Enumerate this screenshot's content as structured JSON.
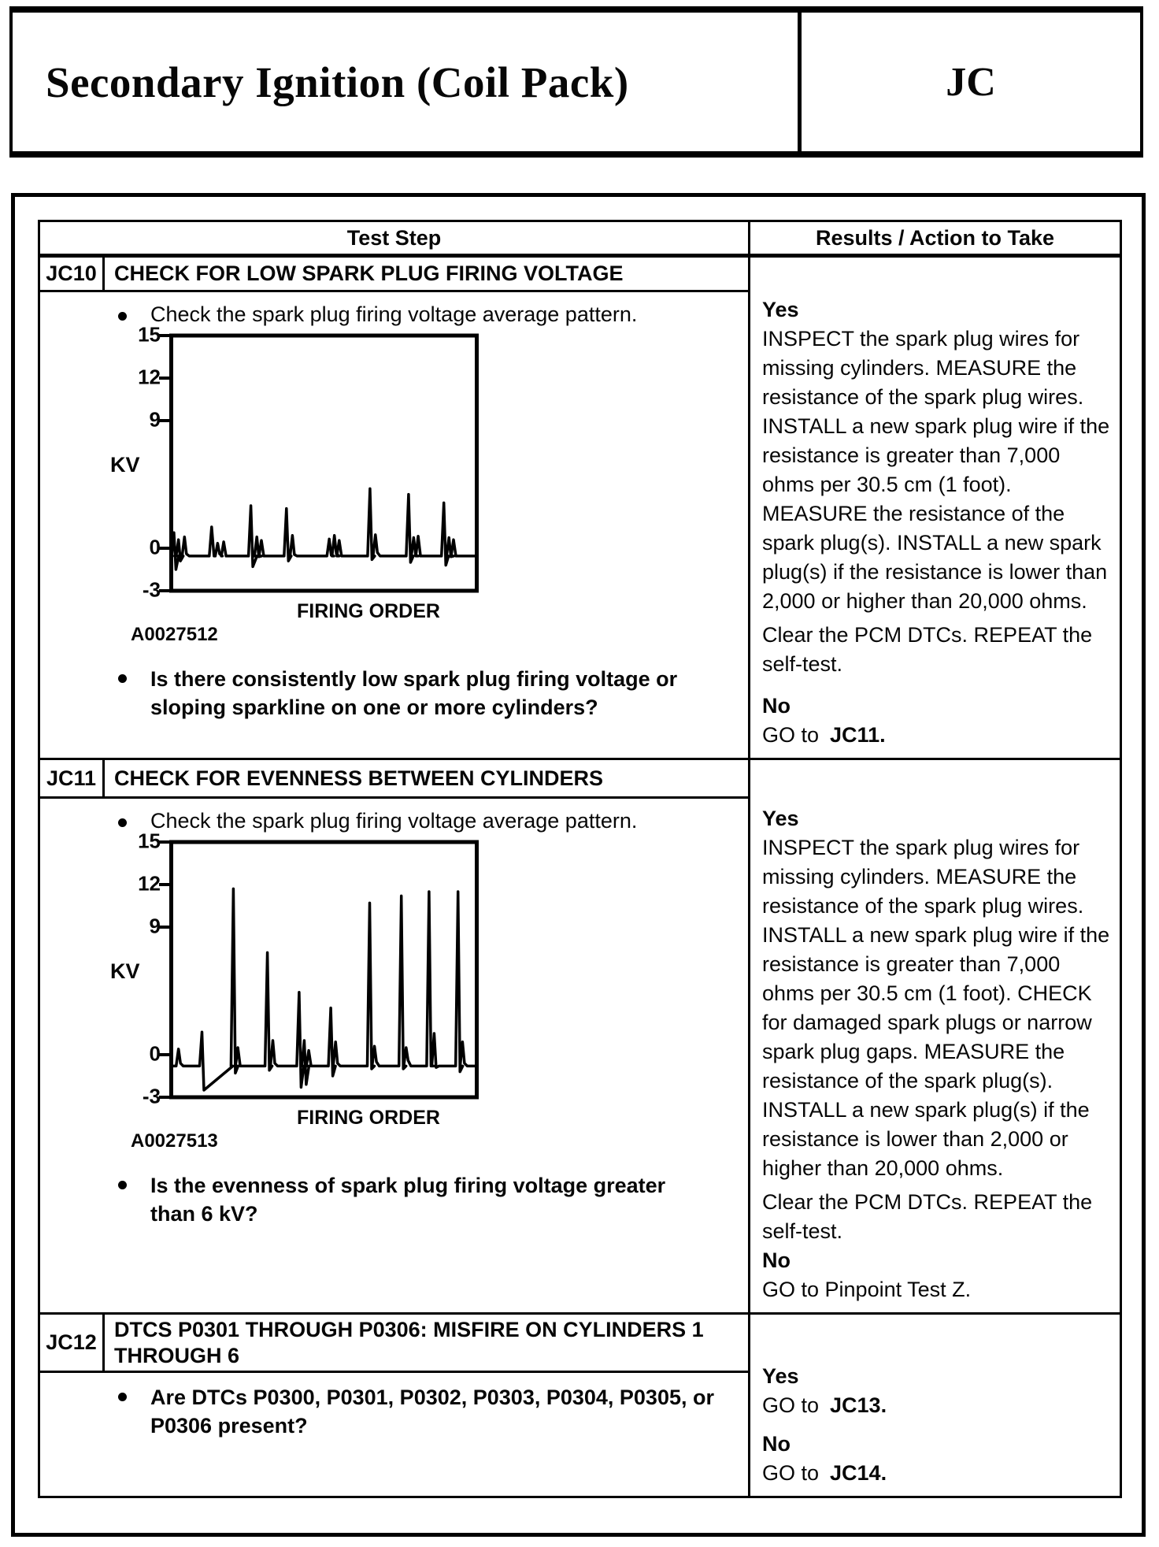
{
  "header": {
    "title": "Secondary Ignition (Coil Pack)",
    "code": "JC"
  },
  "table": {
    "col_headers": {
      "test_step": "Test Step",
      "results": "Results / Action to Take"
    },
    "steps": [
      {
        "id": "JC10",
        "title": "CHECK FOR LOW SPARK PLUG FIRING VOLTAGE",
        "instruction": "Check the spark plug firing voltage average pattern.",
        "question": "Is there consistently low spark plug firing voltage or sloping sparkline on one or more cylinders?",
        "yes_label": "Yes",
        "yes_paragraphs": [
          "INSPECT the spark plug wires for missing cylinders. MEASURE the resistance of the spark plug wires. INSTALL a new spark plug wire if the resistance is greater than 7,000 ohms per 30.5 cm (1 foot). MEASURE the resistance of the spark plug(s). INSTALL a new spark plug(s) if the resistance is lower than 2,000 or higher than 20,000 ohms.",
          "Clear the PCM DTCs. REPEAT the self-test."
        ],
        "no_label": "No",
        "no_action": {
          "prefix": "GO to",
          "target": "JC11."
        }
      },
      {
        "id": "JC11",
        "title": "CHECK FOR EVENNESS BETWEEN CYLINDERS",
        "instruction": "Check the spark plug firing voltage average pattern.",
        "question": "Is the evenness of spark plug firing voltage greater than 6 kV?",
        "yes_label": "Yes",
        "yes_paragraphs": [
          "INSPECT the spark plug wires for missing cylinders. MEASURE the resistance of the spark plug wires. INSTALL a new spark plug wire if the resistance is greater than 7,000 ohms per 30.5 cm (1 foot). CHECK for damaged spark plugs or narrow spark plug gaps. MEASURE the resistance of the spark plug(s). INSTALL a new spark plug(s) if the resistance is lower than 2,000 or higher than 20,000 ohms.",
          "Clear the PCM DTCs. REPEAT the self-test."
        ],
        "no_label": "No",
        "no_action": {
          "prefix": "GO to Pinpoint Test Z.",
          "target": ""
        }
      },
      {
        "id": "JC12",
        "title": "DTCS P0301 THROUGH P0306: MISFIRE ON CYLINDERS 1 THROUGH 6",
        "question": "Are DTCs P0300, P0301, P0302, P0303, P0304, P0305, or P0306 present?",
        "yes_label": "Yes",
        "yes_action": {
          "prefix": "GO to",
          "target": "JC13."
        },
        "no_label": "No",
        "no_action": {
          "prefix": "GO to",
          "target": "JC14."
        }
      }
    ]
  },
  "chart_data": [
    {
      "type": "line",
      "title": "Spark plug firing voltage average pattern (consistently low firing voltage)",
      "figure_id": "A0027512",
      "ylabel": "KV",
      "xlabel": "FIRING ORDER",
      "yticks": [
        15,
        12,
        9,
        0,
        -3
      ],
      "ylim": [
        -3,
        15
      ],
      "grid": false,
      "baseline_kv": -0.55,
      "spikes": [
        {
          "x": 0.005,
          "up": 1.1,
          "down": -1.5
        },
        {
          "x": 0.02,
          "up": 0.6,
          "down": -0.9
        },
        {
          "x": 0.04,
          "up": 0.8,
          "down": -0.4
        },
        {
          "x": 0.13,
          "up": 1.5
        },
        {
          "x": 0.15,
          "up": 0.35,
          "down": -0.4
        },
        {
          "x": 0.17,
          "up": 0.45
        },
        {
          "x": 0.26,
          "up": 3.0,
          "down": -1.3,
          "recover": 0.02
        },
        {
          "x": 0.28,
          "up": 0.8,
          "down": -0.6
        },
        {
          "x": 0.295,
          "up": 0.55
        },
        {
          "x": 0.378,
          "up": 2.8,
          "down": -0.9
        },
        {
          "x": 0.398,
          "up": 0.9,
          "down": -0.45
        },
        {
          "x": 0.52,
          "up": 0.65,
          "down": -0.5
        },
        {
          "x": 0.537,
          "up": 0.9,
          "down": -0.4
        },
        {
          "x": 0.553,
          "up": 0.55
        },
        {
          "x": 0.655,
          "up": 4.2,
          "down": -0.8
        },
        {
          "x": 0.673,
          "up": 0.95,
          "down": -0.3
        },
        {
          "x": 0.783,
          "up": 3.8,
          "down": -1.0
        },
        {
          "x": 0.8,
          "up": 0.75,
          "down": -0.5
        },
        {
          "x": 0.815,
          "up": 0.85
        },
        {
          "x": 0.9,
          "up": 3.2,
          "down": -1.2
        },
        {
          "x": 0.917,
          "up": 0.75,
          "down": -0.6
        },
        {
          "x": 0.932,
          "up": 0.6
        }
      ]
    },
    {
      "type": "line",
      "title": "Spark plug firing voltage average pattern (uneven firing voltage between cylinders)",
      "figure_id": "A0027513",
      "ylabel": "KV",
      "xlabel": "FIRING ORDER",
      "yticks": [
        15,
        12,
        9,
        0,
        -3
      ],
      "ylim": [
        -3,
        15
      ],
      "grid": false,
      "baseline_kv": -0.8,
      "spikes": [
        {
          "x": 0.02,
          "up": 0.4,
          "down": -0.6
        },
        {
          "x": 0.098,
          "up": 1.6,
          "down": -2.5,
          "recover": 0.1
        },
        {
          "x": 0.202,
          "up": 11.7,
          "down": -1.3
        },
        {
          "x": 0.217,
          "up": 0.5
        },
        {
          "x": 0.315,
          "up": 7.2,
          "down": -1.1
        },
        {
          "x": 0.333,
          "up": 1.0,
          "down": -0.6
        },
        {
          "x": 0.42,
          "up": 4.4,
          "down": -2.3
        },
        {
          "x": 0.437,
          "up": 1.0,
          "down": -2.1
        },
        {
          "x": 0.452,
          "up": 0.3
        },
        {
          "x": 0.525,
          "up": 3.3,
          "down": -1.5
        },
        {
          "x": 0.541,
          "up": 0.9,
          "down": -0.6
        },
        {
          "x": 0.654,
          "up": 10.7,
          "down": -1.0
        },
        {
          "x": 0.67,
          "up": 0.6,
          "down": -0.5
        },
        {
          "x": 0.759,
          "up": 11.2,
          "down": -1.0
        },
        {
          "x": 0.775,
          "up": 0.5,
          "down": -0.4
        },
        {
          "x": 0.851,
          "up": 11.5,
          "down": -0.8
        },
        {
          "x": 0.868,
          "up": 1.5,
          "down": -0.9
        },
        {
          "x": 0.947,
          "up": 11.5,
          "down": -1.2
        },
        {
          "x": 0.962,
          "up": 0.9,
          "down": -0.6
        }
      ]
    }
  ]
}
